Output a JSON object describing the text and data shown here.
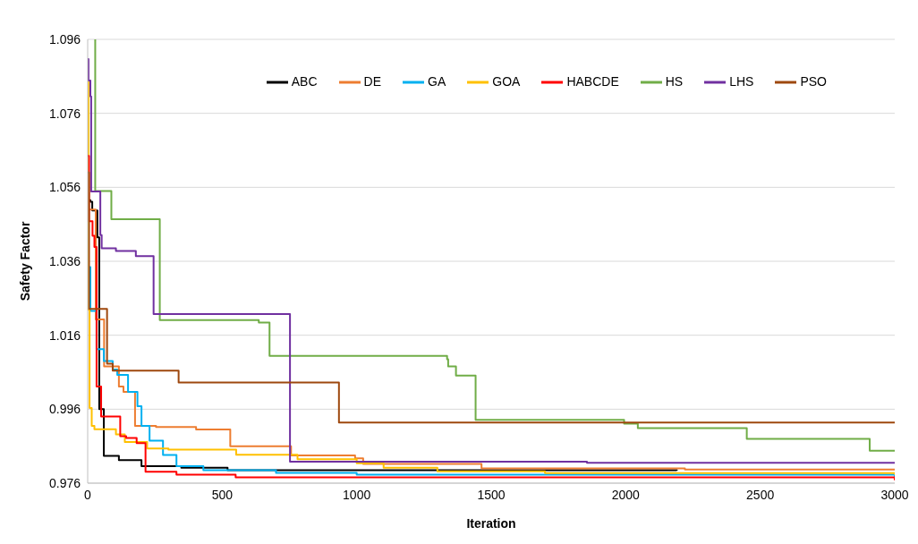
{
  "chart_data": {
    "type": "step",
    "xlabel": "Iteration",
    "ylabel": "Safety Factor",
    "xlim": [
      0,
      3000
    ],
    "xticks": [
      0,
      500,
      1000,
      1500,
      2000,
      2500,
      3000
    ],
    "ylim": [
      0.976,
      1.096
    ],
    "yticks": [
      0.976,
      0.996,
      1.016,
      1.036,
      1.056,
      1.076,
      1.096
    ],
    "grid": "y",
    "legend": "top right",
    "marker": "none",
    "series": [
      {
        "name": "ABC",
        "color": "#000000",
        "x": [
          0,
          10,
          17,
          36,
          43,
          60,
          116,
          200,
          348,
          520,
          2190
        ],
        "values": [
          1.0525,
          1.0521,
          1.0497,
          1.0425,
          0.996,
          0.9834,
          0.9822,
          0.9806,
          0.9802,
          0.9795,
          0.9794
        ]
      },
      {
        "name": "DE",
        "color": "#ed7d31",
        "x": [
          0,
          30,
          61,
          116,
          133,
          176,
          254,
          403,
          530,
          756,
          994,
          1024,
          1464,
          2220,
          3000
        ],
        "values": [
          1.05,
          1.0203,
          1.0076,
          1.0021,
          1.0007,
          0.9915,
          0.9912,
          0.9905,
          0.986,
          0.9835,
          0.9827,
          0.9812,
          0.98,
          0.9797,
          0.9797
        ]
      },
      {
        "name": "GA",
        "color": "#00b0f0",
        "x": [
          0,
          10,
          33,
          60,
          93,
          110,
          150,
          185,
          200,
          230,
          280,
          330,
          430,
          700,
          1000,
          3000
        ],
        "values": [
          1.0344,
          1.0226,
          1.0122,
          1.009,
          1.0067,
          1.0053,
          1.0007,
          0.9968,
          0.9915,
          0.9875,
          0.9836,
          0.9806,
          0.9795,
          0.9788,
          0.9783,
          0.9777
        ]
      },
      {
        "name": "GOA",
        "color": "#ffc000",
        "x": [
          0,
          3,
          7,
          15,
          25,
          105,
          138,
          221,
          300,
          552,
          780,
          1000,
          1100,
          1300,
          1700,
          3000
        ],
        "values": [
          1.0845,
          1.0229,
          0.9963,
          0.9915,
          0.9906,
          0.9892,
          0.9871,
          0.9854,
          0.9851,
          0.9837,
          0.9825,
          0.9814,
          0.9802,
          0.9792,
          0.9787,
          0.9783
        ]
      },
      {
        "name": "HABCDE",
        "color": "#ff0000",
        "x": [
          0,
          5,
          18,
          25,
          33,
          50,
          121,
          143,
          182,
          215,
          330,
          550,
          3000
        ],
        "values": [
          1.0645,
          1.0468,
          1.0429,
          1.0399,
          1.0021,
          0.994,
          0.9887,
          0.9882,
          0.9868,
          0.9791,
          0.9783,
          0.9776,
          0.9768
        ]
      },
      {
        "name": "HS",
        "color": "#70ad47",
        "x": [
          25,
          28,
          88,
          268,
          636,
          676,
          1336,
          1340,
          1369,
          1442,
          1994,
          2045,
          2450,
          2907,
          3000
        ],
        "values": [
          1.096,
          1.055,
          1.0474,
          1.0201,
          1.0194,
          1.0104,
          1.0095,
          1.0076,
          1.0051,
          0.9931,
          0.9921,
          0.9909,
          0.988,
          0.9848,
          0.9848
        ]
      },
      {
        "name": "LHS",
        "color": "#7030a0",
        "x": [
          0,
          3,
          10,
          13,
          47,
          52,
          105,
          179,
          245,
          752,
          1856,
          3000
        ],
        "values": [
          1.0907,
          1.0849,
          1.0806,
          1.0549,
          1.0431,
          1.0395,
          1.0388,
          1.0374,
          1.0217,
          0.9818,
          0.9815,
          0.9815
        ]
      },
      {
        "name": "PSO",
        "color": "#9e480e",
        "x": [
          0,
          5,
          72,
          93,
          338,
          934,
          3000
        ],
        "values": [
          1.06,
          1.0231,
          1.0083,
          1.0064,
          1.0032,
          0.9924,
          0.9924
        ]
      }
    ]
  }
}
